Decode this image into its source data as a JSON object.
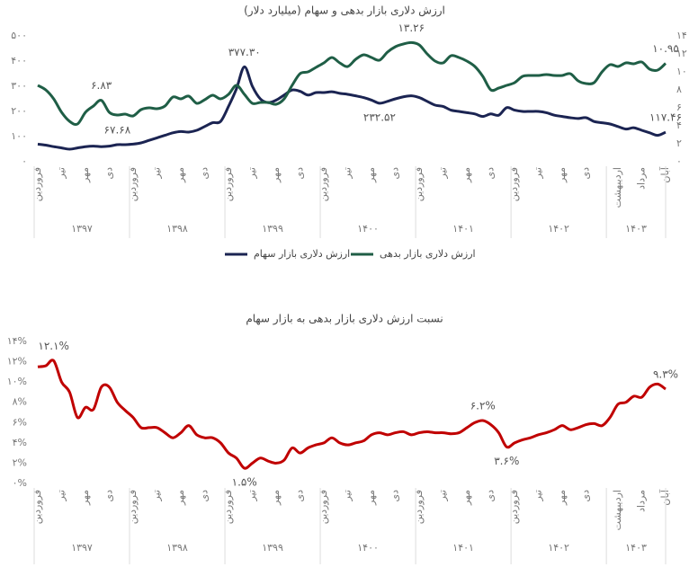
{
  "chart_data": [
    {
      "type": "line",
      "title": "ارزش دلاری بازار بدهی و سهام (میلیارد دلار)",
      "categories": [
        "فروردین",
        null,
        null,
        "تیر",
        null,
        null,
        "مهر",
        null,
        null,
        "دی",
        null,
        null,
        "فروردین",
        null,
        null,
        "تیر",
        null,
        null,
        "مهر",
        null,
        null,
        "دی",
        null,
        null,
        "فروردین",
        null,
        null,
        "تیر",
        null,
        null,
        "مهر",
        null,
        null,
        "دی",
        null,
        null,
        "فروردین",
        null,
        null,
        "تیر",
        null,
        null,
        "مهر",
        null,
        null,
        "دی",
        null,
        null,
        "فروردین",
        null,
        null,
        "تیر",
        null,
        null,
        "مهر",
        null,
        null,
        "دی",
        null,
        null,
        "فروردین",
        null,
        null,
        "تیر",
        null,
        null,
        "مهر",
        null,
        null,
        "دی",
        null,
        null,
        null,
        "اردیبهشت",
        null,
        null,
        "مرداد",
        null,
        null,
        "آبان"
      ],
      "groups": [
        "۱۳۹۷",
        "۱۳۹۸",
        "۱۳۹۹",
        "۱۴۰۰",
        "۱۴۰۱",
        "۱۴۰۲",
        "۱۴۰۳"
      ],
      "ylim": [
        0,
        500
      ],
      "yticks": [
        {
          "value": 0,
          "label": "۰"
        },
        {
          "value": 100,
          "label": "۱۰۰"
        },
        {
          "value": 200,
          "label": "۲۰۰"
        },
        {
          "value": 300,
          "label": "۳۰۰"
        },
        {
          "value": 400,
          "label": "۴۰۰"
        },
        {
          "value": 500,
          "label": "۵۰۰"
        }
      ],
      "y2lim": [
        0,
        14
      ],
      "y2ticks": [
        {
          "value": 0,
          "label": "۰"
        },
        {
          "value": 2,
          "label": "۲"
        },
        {
          "value": 4,
          "label": "۴"
        },
        {
          "value": 6,
          "label": "۶"
        },
        {
          "value": 8,
          "label": "۸"
        },
        {
          "value": 10,
          "label": "۱۰"
        },
        {
          "value": 12,
          "label": "۱۲"
        },
        {
          "value": 14,
          "label": "۱۴"
        }
      ],
      "legend": "bottom",
      "series": [
        {
          "name": "ارزش دلاری بازار سهام",
          "color": "#1b2452",
          "axis": "y",
          "values": [
            70,
            66,
            60,
            55,
            50,
            55,
            60,
            62,
            60,
            62,
            67.68,
            68,
            70,
            75,
            85,
            95,
            105,
            115,
            120,
            118,
            125,
            140,
            155,
            160,
            220,
            290,
            377.3,
            300,
            250,
            235,
            245,
            265,
            285,
            280,
            265,
            275,
            275,
            278,
            272,
            268,
            262,
            255,
            245,
            232.52,
            240,
            250,
            258,
            262,
            255,
            240,
            225,
            220,
            205,
            200,
            195,
            190,
            180,
            190,
            185,
            215,
            205,
            200,
            200,
            200,
            195,
            185,
            180,
            175,
            172,
            175,
            160,
            155,
            150,
            140,
            130,
            135,
            125,
            115,
            105,
            117.46
          ],
          "value_labels": [
            null,
            null,
            null,
            null,
            null,
            null,
            null,
            null,
            null,
            null,
            "۶۷.۶۸",
            null,
            null,
            null,
            null,
            null,
            null,
            null,
            null,
            null,
            null,
            null,
            null,
            null,
            null,
            null,
            "۳۷۷.۳۰",
            null,
            null,
            null,
            null,
            null,
            null,
            null,
            null,
            null,
            null,
            null,
            null,
            null,
            null,
            null,
            null,
            "۲۳۲.۵۲",
            null,
            null,
            null,
            null,
            null,
            null,
            null,
            null,
            null,
            null,
            null,
            null,
            null,
            null,
            null,
            null,
            null,
            null,
            null,
            null,
            null,
            null,
            null,
            null,
            null,
            null,
            null,
            null,
            null,
            null,
            null,
            null,
            null,
            null,
            null,
            "۱۱۷.۴۶"
          ]
        },
        {
          "name": "ارزش دلاری بازار بدهی",
          "color": "#1f5e46",
          "axis": "y2",
          "values": [
            8.5,
            8.0,
            7.0,
            5.5,
            4.5,
            4.2,
            5.5,
            6.2,
            6.83,
            5.5,
            5.2,
            5.3,
            5.1,
            5.8,
            6.0,
            5.9,
            6.2,
            7.2,
            7.0,
            7.3,
            6.5,
            6.9,
            7.4,
            7.0,
            7.5,
            8.5,
            7.5,
            6.5,
            6.6,
            6.6,
            6.4,
            7.0,
            8.5,
            9.8,
            10.0,
            10.5,
            11.0,
            11.6,
            11.0,
            10.6,
            11.4,
            11.9,
            11.6,
            11.3,
            12.2,
            12.8,
            13.1,
            13.26,
            13.0,
            12.0,
            11.2,
            11.0,
            11.8,
            11.6,
            11.2,
            10.6,
            9.5,
            8.0,
            8.2,
            8.5,
            8.8,
            9.5,
            9.6,
            9.6,
            9.7,
            9.6,
            9.6,
            9.8,
            9.0,
            8.7,
            8.8,
            10.0,
            10.8,
            10.6,
            11.0,
            10.9,
            11.1,
            10.3,
            10.2,
            10.95
          ],
          "value_labels": [
            null,
            null,
            null,
            null,
            null,
            null,
            null,
            null,
            "۶.۸۳",
            null,
            null,
            null,
            null,
            null,
            null,
            null,
            null,
            null,
            null,
            null,
            null,
            null,
            null,
            null,
            null,
            null,
            null,
            null,
            null,
            null,
            null,
            null,
            null,
            null,
            null,
            null,
            null,
            null,
            null,
            null,
            null,
            null,
            null,
            null,
            null,
            null,
            null,
            "۱۳.۲۶",
            null,
            null,
            null,
            null,
            null,
            null,
            null,
            null,
            null,
            null,
            null,
            null,
            null,
            null,
            null,
            null,
            null,
            null,
            null,
            null,
            null,
            null,
            null,
            null,
            null,
            null,
            null,
            null,
            null,
            null,
            null,
            "۱۰.۹۵"
          ]
        }
      ]
    },
    {
      "type": "line",
      "title": "نسبت ارزش دلاری بازار بدهی به بازار سهام",
      "categories": [
        "فروردین",
        null,
        null,
        "تیر",
        null,
        null,
        "مهر",
        null,
        null,
        "دی",
        null,
        null,
        "فروردین",
        null,
        null,
        "تیر",
        null,
        null,
        "مهر",
        null,
        null,
        "دی",
        null,
        null,
        "فروردین",
        null,
        null,
        "تیر",
        null,
        null,
        "مهر",
        null,
        null,
        "دی",
        null,
        null,
        "فروردین",
        null,
        null,
        "تیر",
        null,
        null,
        "مهر",
        null,
        null,
        "دی",
        null,
        null,
        "فروردین",
        null,
        null,
        "تیر",
        null,
        null,
        "مهر",
        null,
        null,
        "دی",
        null,
        null,
        "فروردین",
        null,
        null,
        "تیر",
        null,
        null,
        "مهر",
        null,
        null,
        "دی",
        null,
        null,
        null,
        "اردیبهشت",
        null,
        null,
        "مرداد",
        null,
        null,
        "آبان"
      ],
      "groups": [
        "۱۳۹۷",
        "۱۳۹۸",
        "۱۳۹۹",
        "۱۴۰۰",
        "۱۴۰۱",
        "۱۴۰۲",
        "۱۴۰۳"
      ],
      "ylim": [
        0,
        14
      ],
      "yticks": [
        {
          "value": 0,
          "label": "۰%"
        },
        {
          "value": 2,
          "label": "۲%"
        },
        {
          "value": 4,
          "label": "۴%"
        },
        {
          "value": 6,
          "label": "۶%"
        },
        {
          "value": 8,
          "label": "۸%"
        },
        {
          "value": 10,
          "label": "۱۰%"
        },
        {
          "value": 12,
          "label": "۱۲%"
        },
        {
          "value": 14,
          "label": "۱۴%"
        }
      ],
      "series": [
        {
          "name": "نسبت",
          "color": "#c00000",
          "axis": "y",
          "values": [
            11.5,
            11.6,
            12.1,
            10.0,
            9.0,
            6.5,
            7.5,
            7.3,
            9.5,
            9.5,
            8.0,
            7.2,
            6.5,
            5.5,
            5.5,
            5.5,
            5.0,
            4.5,
            5.0,
            5.7,
            4.8,
            4.5,
            4.5,
            4.0,
            3.0,
            2.5,
            1.5,
            2.0,
            2.5,
            2.2,
            2.0,
            2.3,
            3.5,
            3.0,
            3.5,
            3.8,
            4.0,
            4.5,
            4.0,
            3.8,
            4.0,
            4.2,
            4.8,
            5.0,
            4.8,
            5.0,
            5.1,
            4.8,
            5.0,
            5.1,
            5.0,
            5.0,
            4.9,
            5.0,
            5.5,
            6.0,
            6.2,
            5.8,
            5.0,
            3.6,
            4.0,
            4.3,
            4.5,
            4.8,
            5.0,
            5.3,
            5.7,
            5.3,
            5.5,
            5.8,
            5.9,
            5.7,
            6.5,
            7.8,
            8.0,
            8.6,
            8.5,
            9.5,
            9.8,
            9.3
          ],
          "value_labels": [
            null,
            null,
            "۱۲.۱%",
            null,
            null,
            null,
            null,
            null,
            null,
            null,
            null,
            null,
            null,
            null,
            null,
            null,
            null,
            null,
            null,
            null,
            null,
            null,
            null,
            null,
            null,
            null,
            "۱.۵%",
            null,
            null,
            null,
            null,
            null,
            null,
            null,
            null,
            null,
            null,
            null,
            null,
            null,
            null,
            null,
            null,
            null,
            null,
            null,
            null,
            null,
            null,
            null,
            null,
            null,
            null,
            null,
            null,
            null,
            "۶.۲%",
            null,
            null,
            "۳.۶%",
            null,
            null,
            null,
            null,
            null,
            null,
            null,
            null,
            null,
            null,
            null,
            null,
            null,
            null,
            null,
            null,
            null,
            null,
            null,
            "۹.۳%"
          ]
        }
      ]
    }
  ]
}
